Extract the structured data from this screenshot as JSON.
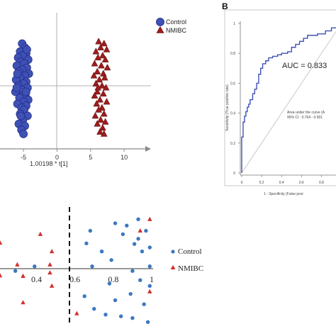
{
  "chart_data": [
    {
      "type": "scatter",
      "panel": "A",
      "xlabel": "1.00198 * t[1]",
      "xticks": [
        "-5",
        "0",
        "5",
        "10"
      ],
      "xlim": [
        -8.5,
        14
      ],
      "ylim": [
        -3,
        3
      ],
      "legend": {
        "placement": "top-right",
        "entries": [
          "Control",
          "NMIBC"
        ]
      },
      "series": [
        {
          "name": "Control",
          "marker": "circle",
          "color": "#3f51b5",
          "points": [
            [
              -5.2,
              2.1
            ],
            [
              -4.8,
              1.9
            ],
            [
              -5.5,
              1.7
            ],
            [
              -4.6,
              1.6
            ],
            [
              -5.1,
              1.5
            ],
            [
              -5.8,
              1.4
            ],
            [
              -4.3,
              1.3
            ],
            [
              -5.4,
              1.2
            ],
            [
              -4.9,
              1.1
            ],
            [
              -6.0,
              1.0
            ],
            [
              -4.5,
              0.9
            ],
            [
              -5.2,
              0.8
            ],
            [
              -5.7,
              0.7
            ],
            [
              -4.2,
              0.6
            ],
            [
              -4.8,
              0.5
            ],
            [
              -5.5,
              0.4
            ],
            [
              -6.1,
              0.3
            ],
            [
              -4.6,
              0.2
            ],
            [
              -5.0,
              0.1
            ],
            [
              -5.8,
              0.0
            ],
            [
              -4.4,
              -0.1
            ],
            [
              -5.3,
              -0.2
            ],
            [
              -6.2,
              -0.3
            ],
            [
              -4.7,
              -0.4
            ],
            [
              -5.1,
              -0.5
            ],
            [
              -5.6,
              -0.6
            ],
            [
              -4.3,
              -0.7
            ],
            [
              -5.0,
              -0.8
            ],
            [
              -5.9,
              -0.9
            ],
            [
              -4.6,
              -1.0
            ],
            [
              -5.3,
              -1.1
            ],
            [
              -4.9,
              -1.2
            ],
            [
              -5.5,
              -1.4
            ],
            [
              -4.4,
              -1.5
            ],
            [
              -5.1,
              -1.7
            ],
            [
              -5.7,
              -1.9
            ],
            [
              -4.8,
              -2.0
            ],
            [
              -5.3,
              -2.2
            ],
            [
              -5.0,
              -2.4
            ],
            [
              -4.6,
              -0.3
            ],
            [
              -5.9,
              0.6
            ],
            [
              -5.4,
              -1.5
            ],
            [
              -4.5,
              1.8
            ],
            [
              -6.0,
              -0.1
            ]
          ]
        },
        {
          "name": "NMIBC",
          "marker": "triangle",
          "color": "#9b1c1c",
          "points": [
            [
              6.2,
              2.2
            ],
            [
              7.0,
              2.1
            ],
            [
              6.5,
              1.9
            ],
            [
              7.4,
              1.8
            ],
            [
              5.8,
              1.7
            ],
            [
              6.8,
              1.5
            ],
            [
              6.1,
              1.4
            ],
            [
              7.2,
              1.3
            ],
            [
              5.6,
              1.1
            ],
            [
              6.6,
              1.0
            ],
            [
              7.5,
              0.9
            ],
            [
              6.0,
              0.7
            ],
            [
              6.9,
              0.6
            ],
            [
              5.5,
              0.5
            ],
            [
              7.1,
              0.4
            ],
            [
              6.3,
              0.3
            ],
            [
              5.8,
              0.1
            ],
            [
              6.7,
              0.0
            ],
            [
              7.3,
              -0.1
            ],
            [
              6.0,
              -0.3
            ],
            [
              6.9,
              -0.4
            ],
            [
              5.6,
              -0.5
            ],
            [
              6.4,
              -0.7
            ],
            [
              7.4,
              -0.8
            ],
            [
              5.9,
              -0.9
            ],
            [
              6.7,
              -1.1
            ],
            [
              6.2,
              -1.2
            ],
            [
              7.0,
              -1.4
            ],
            [
              5.7,
              -1.5
            ],
            [
              6.5,
              -1.7
            ],
            [
              7.2,
              -1.8
            ],
            [
              6.0,
              -1.9
            ],
            [
              6.8,
              -2.1
            ],
            [
              6.4,
              -2.3
            ],
            [
              7.0,
              -2.4
            ],
            [
              6.1,
              -0.1
            ]
          ]
        }
      ]
    },
    {
      "type": "line",
      "panel": "B",
      "label": "B",
      "xlabel": "1 - Specificity (False posi",
      "ylabel": "Sensitivity (True positive rate)",
      "xticks": [
        "0",
        "0.2",
        "0.4",
        "0.6",
        "0.8"
      ],
      "yticks": [
        "0",
        "0.2",
        "0.4",
        "0.6",
        "0.8",
        "1"
      ],
      "xlim": [
        0,
        0.96
      ],
      "ylim": [
        0,
        1
      ],
      "annotation": "AUC = 0.833",
      "note_lines": [
        "Area under the curve (A",
        "95% CI : 0.764 - 0.901"
      ],
      "series": [
        {
          "name": "ROC",
          "color": "#3f51b5",
          "points": [
            [
              0,
              0
            ],
            [
              0,
              0.24
            ],
            [
              0.014,
              0.24
            ],
            [
              0.014,
              0.34
            ],
            [
              0.028,
              0.34
            ],
            [
              0.028,
              0.38
            ],
            [
              0.042,
              0.38
            ],
            [
              0.042,
              0.41
            ],
            [
              0.056,
              0.41
            ],
            [
              0.056,
              0.44
            ],
            [
              0.07,
              0.44
            ],
            [
              0.07,
              0.46
            ],
            [
              0.084,
              0.46
            ],
            [
              0.084,
              0.49
            ],
            [
              0.11,
              0.49
            ],
            [
              0.11,
              0.53
            ],
            [
              0.13,
              0.53
            ],
            [
              0.13,
              0.56
            ],
            [
              0.15,
              0.56
            ],
            [
              0.15,
              0.6
            ],
            [
              0.17,
              0.6
            ],
            [
              0.17,
              0.66
            ],
            [
              0.19,
              0.66
            ],
            [
              0.19,
              0.7
            ],
            [
              0.21,
              0.7
            ],
            [
              0.21,
              0.73
            ],
            [
              0.24,
              0.73
            ],
            [
              0.24,
              0.75
            ],
            [
              0.27,
              0.75
            ],
            [
              0.27,
              0.77
            ],
            [
              0.31,
              0.77
            ],
            [
              0.31,
              0.78
            ],
            [
              0.36,
              0.78
            ],
            [
              0.36,
              0.79
            ],
            [
              0.4,
              0.79
            ],
            [
              0.4,
              0.8
            ],
            [
              0.46,
              0.8
            ],
            [
              0.46,
              0.81
            ],
            [
              0.5,
              0.81
            ],
            [
              0.5,
              0.84
            ],
            [
              0.54,
              0.84
            ],
            [
              0.54,
              0.86
            ],
            [
              0.58,
              0.86
            ],
            [
              0.58,
              0.88
            ],
            [
              0.62,
              0.88
            ],
            [
              0.62,
              0.9
            ],
            [
              0.66,
              0.9
            ],
            [
              0.66,
              0.92
            ],
            [
              0.76,
              0.92
            ],
            [
              0.76,
              0.93
            ],
            [
              0.84,
              0.93
            ],
            [
              0.84,
              0.95
            ],
            [
              0.9,
              0.95
            ],
            [
              0.9,
              0.97
            ],
            [
              0.96,
              0.97
            ]
          ]
        },
        {
          "name": "Reference",
          "color": "#bdbdbd",
          "points": [
            [
              0,
              0
            ],
            [
              0.96,
              0.96
            ]
          ]
        }
      ]
    },
    {
      "type": "scatter",
      "panel": "C",
      "xticks": [
        "0.4",
        "0.6",
        "0.8",
        "1"
      ],
      "xlim": [
        0.21,
        1.0
      ],
      "ylim": [
        -1,
        1
      ],
      "threshold_x": 0.6,
      "legend": {
        "placement": "right",
        "entries": [
          "Control",
          "NMIBC"
        ]
      },
      "series": [
        {
          "name": "Control",
          "marker": "circle",
          "color": "#3b78c2",
          "points": [
            [
              0.93,
              0.86
            ],
            [
              0.81,
              0.79
            ],
            [
              0.87,
              0.75
            ],
            [
              0.97,
              0.66
            ],
            [
              0.68,
              0.66
            ],
            [
              0.85,
              0.6
            ],
            [
              0.93,
              0.52
            ],
            [
              0.66,
              0.44
            ],
            [
              0.91,
              0.43
            ],
            [
              0.99,
              0.37
            ],
            [
              0.95,
              0.3
            ],
            [
              0.74,
              0.3
            ],
            [
              0.79,
              0.15
            ],
            [
              0.69,
              0.04
            ],
            [
              0.9,
              -0.04
            ],
            [
              0.99,
              0.04
            ],
            [
              0.39,
              0.04
            ],
            [
              0.29,
              -0.04
            ],
            [
              0.94,
              -0.2
            ],
            [
              0.78,
              -0.26
            ],
            [
              0.99,
              -0.3
            ],
            [
              0.89,
              -0.44
            ],
            [
              0.65,
              -0.48
            ],
            [
              0.81,
              -0.55
            ],
            [
              0.96,
              -0.62
            ],
            [
              0.7,
              -0.7
            ],
            [
              0.84,
              -0.83
            ],
            [
              0.9,
              -0.86
            ],
            [
              0.98,
              -0.93
            ],
            [
              0.76,
              -0.8
            ]
          ]
        },
        {
          "name": "NMIBC",
          "marker": "triangle",
          "color": "#d32f2f",
          "points": [
            [
              0.99,
              0.86
            ],
            [
              0.94,
              0.66
            ],
            [
              0.42,
              0.6
            ],
            [
              0.48,
              0.3
            ],
            [
              0.3,
              0.07
            ],
            [
              0.47,
              0.07
            ],
            [
              0.47,
              -0.07
            ],
            [
              0.21,
              -0.12
            ],
            [
              0.33,
              -0.13
            ],
            [
              0.48,
              -0.3
            ],
            [
              0.33,
              -0.59
            ],
            [
              0.61,
              -0.78
            ],
            [
              0.99,
              -0.4
            ],
            [
              0.21,
              0.45
            ]
          ]
        }
      ]
    }
  ]
}
